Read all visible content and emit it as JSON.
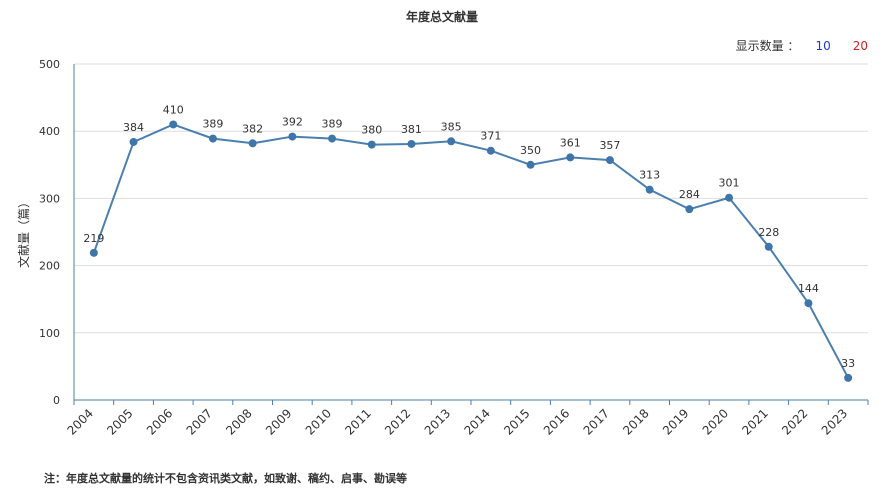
{
  "chart_data": {
    "type": "line",
    "title": "年度总文献量",
    "ylabel": "文献量（篇）",
    "xlabel": "",
    "ylim": [
      0,
      500
    ],
    "yticks": [
      0,
      100,
      200,
      300,
      400,
      500
    ],
    "grid": true,
    "legend": "none",
    "x": [
      "2004",
      "2005",
      "2006",
      "2007",
      "2008",
      "2009",
      "2010",
      "2011",
      "2012",
      "2013",
      "2014",
      "2015",
      "2016",
      "2017",
      "2018",
      "2019",
      "2020",
      "2021",
      "2022",
      "2023"
    ],
    "series": [
      {
        "values": [
          219,
          384,
          410,
          389,
          382,
          392,
          389,
          380,
          381,
          385,
          371,
          350,
          361,
          357,
          313,
          284,
          301,
          228,
          144,
          33
        ]
      }
    ],
    "colors": {
      "line": "#4a7fb0",
      "point": "#3f76aa",
      "grid": "#dddddd",
      "axis": "#4a7fb0"
    }
  },
  "display_count": {
    "label": "显示数量 ：",
    "options": [
      "10",
      "20"
    ]
  },
  "footnote": "注：年度总文献量的统计不包含资讯类文献，如致谢、稿约、启事、勘误等"
}
